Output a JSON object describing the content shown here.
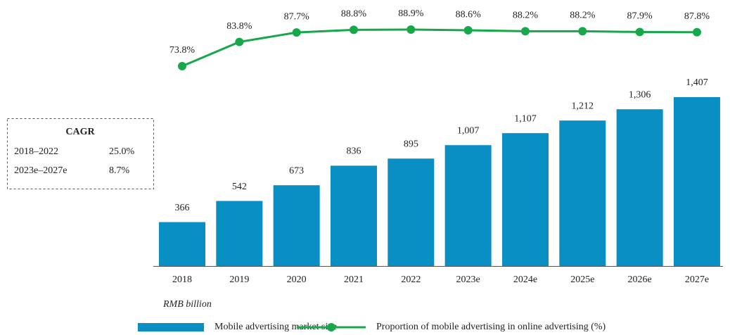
{
  "chart_data": {
    "type": "bar",
    "categories": [
      "2018",
      "2019",
      "2020",
      "2021",
      "2022",
      "2023e",
      "2024e",
      "2025e",
      "2026e",
      "2027e"
    ],
    "series": [
      {
        "name": "Mobile advertising market size",
        "type": "bar",
        "color": "#0a8fc4",
        "values": [
          366,
          542,
          673,
          836,
          895,
          1007,
          1107,
          1212,
          1306,
          1407
        ],
        "value_labels": [
          "366",
          "542",
          "673",
          "836",
          "895",
          "1,007",
          "1,107",
          "1,212",
          "1,306",
          "1,407"
        ]
      },
      {
        "name": "Proportion of mobile advertising in online advertising (%)",
        "type": "line",
        "color": "#16a84a",
        "values": [
          73.8,
          83.8,
          87.7,
          88.8,
          88.9,
          88.6,
          88.2,
          88.2,
          87.9,
          87.8
        ],
        "value_labels": [
          "73.8%",
          "83.8%",
          "87.7%",
          "88.8%",
          "88.9%",
          "88.6%",
          "88.2%",
          "88.2%",
          "87.9%",
          "87.8%"
        ]
      }
    ],
    "unit_note": "RMB billion",
    "cagr_box": {
      "title": "CAGR",
      "rows": [
        [
          "2018–2022",
          "25.0%"
        ],
        [
          "2023e–2027e",
          "8.7%"
        ]
      ]
    }
  }
}
